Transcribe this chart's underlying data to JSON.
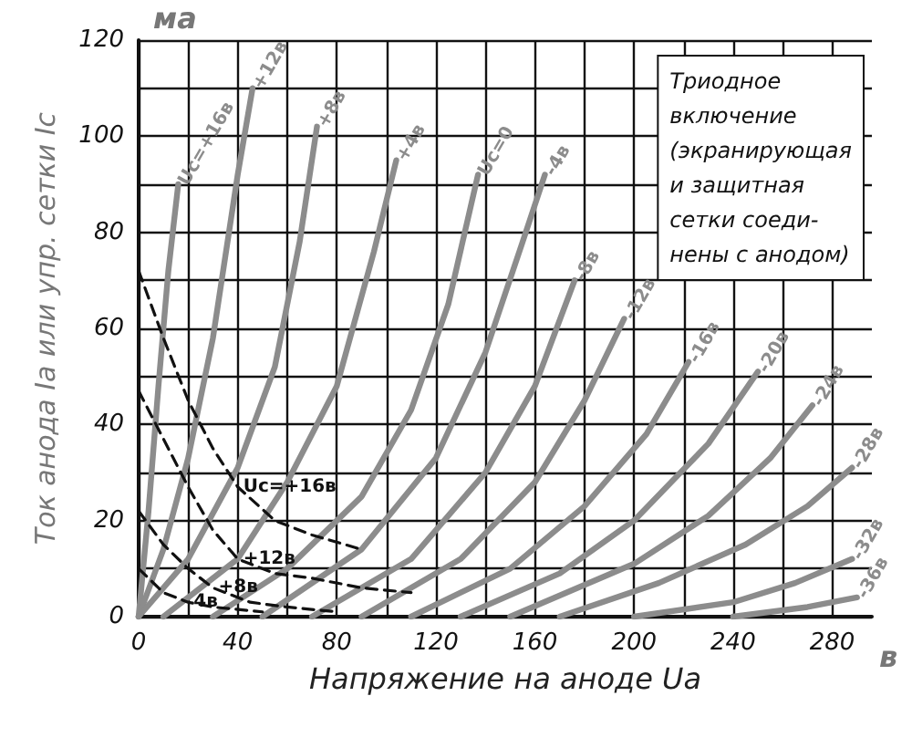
{
  "chart_data": {
    "type": "line",
    "xlabel": "Напряжение на аноде Uа",
    "ylabel": "Ток анода Iа или упр. сетки Ic",
    "annotations": [
      "Триодное\nвключение\n(экранирующая\nи защитная\nсетки соеди-\nнены с анодом)",
      "ма",
      "в"
    ],
    "xlim": [
      0,
      296
    ],
    "ylim": [
      0,
      120
    ],
    "xticks": [
      0,
      {
        "value": 20,
        "label": null
      },
      40,
      {
        "value": 60,
        "label": null
      },
      80,
      {
        "value": 100,
        "label": null
      },
      120,
      {
        "value": 140,
        "label": null
      },
      160,
      {
        "value": 180,
        "label": null
      },
      200,
      {
        "value": 220,
        "label": null
      },
      240,
      {
        "value": 260,
        "label": null
      },
      280
    ],
    "yticks": [
      0,
      {
        "value": 10,
        "label": null
      },
      20,
      {
        "value": 30,
        "label": null
      },
      40,
      {
        "value": 50,
        "label": null
      },
      60,
      {
        "value": 70,
        "label": null
      },
      80,
      {
        "value": 90,
        "label": null
      },
      100,
      {
        "value": 110,
        "label": null
      },
      120
    ],
    "grid": true,
    "legend": false,
    "marker": "none",
    "series": [
      {
        "name": "Uc=+16в",
        "color": "#8c8c8c",
        "line_style": "solid",
        "x": [
          0,
          4,
          8,
          12,
          16
        ],
        "values": [
          0,
          22,
          48,
          72,
          90
        ]
      },
      {
        "name": "+12в",
        "color": "#8c8c8c",
        "line_style": "solid",
        "x": [
          0,
          10,
          20,
          30,
          40,
          46
        ],
        "values": [
          0,
          14,
          33,
          58,
          92,
          110
        ]
      },
      {
        "name": "+8в",
        "color": "#8c8c8c",
        "line_style": "solid",
        "x": [
          0,
          20,
          40,
          55,
          65,
          72
        ],
        "values": [
          0,
          12,
          31,
          52,
          78,
          102
        ]
      },
      {
        "name": "+4в",
        "color": "#8c8c8c",
        "line_style": "solid",
        "x": [
          10,
          40,
          60,
          80,
          95,
          104
        ],
        "values": [
          0,
          12,
          28,
          48,
          76,
          95
        ]
      },
      {
        "name": "Uc=0",
        "color": "#8c8c8c",
        "line_style": "solid",
        "x": [
          30,
          60,
          90,
          110,
          125,
          137
        ],
        "values": [
          0,
          10,
          25,
          43,
          65,
          92
        ]
      },
      {
        "name": "-4в",
        "color": "#8c8c8c",
        "line_style": "solid",
        "x": [
          50,
          90,
          120,
          140,
          155,
          164
        ],
        "values": [
          0,
          14,
          33,
          55,
          78,
          92
        ]
      },
      {
        "name": "-8в",
        "color": "#8c8c8c",
        "line_style": "solid",
        "x": [
          70,
          110,
          140,
          160,
          176
        ],
        "values": [
          0,
          12,
          30,
          48,
          70
        ]
      },
      {
        "name": "-12в",
        "color": "#8c8c8c",
        "line_style": "solid",
        "x": [
          90,
          130,
          160,
          180,
          196
        ],
        "values": [
          0,
          12,
          28,
          45,
          62
        ]
      },
      {
        "name": "-16в",
        "color": "#8c8c8c",
        "line_style": "solid",
        "x": [
          110,
          150,
          180,
          205,
          222
        ],
        "values": [
          0,
          10,
          23,
          38,
          53
        ]
      },
      {
        "name": "-20в",
        "color": "#8c8c8c",
        "line_style": "solid",
        "x": [
          130,
          170,
          200,
          230,
          250
        ],
        "values": [
          0,
          9,
          20,
          36,
          51
        ]
      },
      {
        "name": "-24в",
        "color": "#8c8c8c",
        "line_style": "solid",
        "x": [
          150,
          200,
          230,
          255,
          272
        ],
        "values": [
          0,
          11,
          21,
          33,
          44
        ]
      },
      {
        "name": "-28в",
        "color": "#8c8c8c",
        "line_style": "solid",
        "x": [
          170,
          210,
          245,
          270,
          288
        ],
        "values": [
          0,
          7,
          15,
          23,
          31
        ]
      },
      {
        "name": "-32в",
        "color": "#8c8c8c",
        "line_style": "solid",
        "x": [
          200,
          240,
          265,
          288
        ],
        "values": [
          0,
          3,
          7,
          12
        ]
      },
      {
        "name": "-36в",
        "color": "#8c8c8c",
        "line_style": "solid",
        "x": [
          240,
          270,
          290
        ],
        "values": [
          0,
          2,
          4
        ]
      },
      {
        "name": "Uc=+16в",
        "color": "#111111",
        "line_style": "dashed",
        "x": [
          0,
          10,
          20,
          30,
          40,
          55,
          70,
          90
        ],
        "values": [
          72,
          58,
          45,
          35,
          27,
          20,
          17,
          14
        ]
      },
      {
        "name": "+12в",
        "color": "#111111",
        "line_style": "dashed",
        "x": [
          0,
          10,
          20,
          30,
          40,
          55,
          70,
          90,
          110
        ],
        "values": [
          47,
          37,
          27,
          18,
          12,
          9,
          8,
          6,
          5
        ]
      },
      {
        "name": "+8в",
        "color": "#111111",
        "line_style": "dashed",
        "x": [
          0,
          10,
          20,
          30,
          45,
          60,
          80
        ],
        "values": [
          22,
          15,
          10,
          6,
          3,
          2,
          1
        ]
      },
      {
        "name": "4в",
        "color": "#111111",
        "line_style": "dashed",
        "x": [
          0,
          10,
          20,
          30,
          50
        ],
        "values": [
          10,
          5,
          3,
          2,
          1
        ]
      }
    ]
  }
}
